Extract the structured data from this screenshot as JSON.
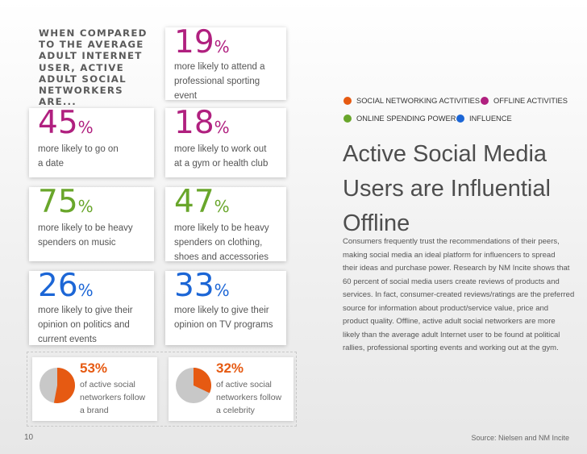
{
  "intro": [
    "WHEN COMPARED",
    "TO THE AVERAGE",
    "ADULT INTERNET",
    "USER, ACTIVE",
    "ADULT SOCIAL",
    "NETWORKERS ARE..."
  ],
  "stats": [
    {
      "value": "19",
      "symbol": "%",
      "color": "#b0207f",
      "lines": [
        "more likely to attend a",
        "professional sporting",
        "event"
      ]
    },
    {
      "value": "45",
      "symbol": "%",
      "color": "#b0207f",
      "lines": [
        "more likely to go on",
        "a date"
      ]
    },
    {
      "value": "18",
      "symbol": "%",
      "color": "#b0207f",
      "lines": [
        "more likely to work out",
        "at a gym or health club"
      ]
    },
    {
      "value": "75",
      "symbol": "%",
      "color": "#69a62b",
      "lines": [
        "more likely to be heavy",
        "spenders on music"
      ]
    },
    {
      "value": "47",
      "symbol": "%",
      "color": "#69a62b",
      "lines": [
        "more likely to be heavy",
        "spenders on clothing,",
        "shoes and accessories"
      ]
    },
    {
      "value": "26",
      "symbol": "%",
      "color": "#1c66d6",
      "lines": [
        "more likely to give their",
        "opinion on politics and",
        "current events"
      ]
    },
    {
      "value": "33",
      "symbol": "%",
      "color": "#1c66d6",
      "lines": [
        "more likely to give their",
        "opinion on TV programs"
      ]
    }
  ],
  "pies": [
    {
      "percent_label": "53%",
      "fraction": 0.53,
      "lines": [
        "of active social",
        "networkers follow",
        "a brand"
      ]
    },
    {
      "percent_label": "32%",
      "fraction": 0.32,
      "lines": [
        "of active social",
        "networkers follow",
        "a celebrity"
      ]
    }
  ],
  "colors": {
    "magenta": "#b0207f",
    "green": "#69a62b",
    "blue": "#1c66d6",
    "orange": "#e65a12",
    "pie_rest": "#c8c8c8"
  },
  "legend": [
    {
      "label": "SOCIAL NETWORKING ACTIVITIES",
      "color": "#e65a12"
    },
    {
      "label": "OFFLINE ACTIVITIES",
      "color": "#b0207f"
    },
    {
      "label": "ONLINE SPENDING POWER",
      "color": "#69a62b"
    },
    {
      "label": "INFLUENCE",
      "color": "#1c66d6"
    }
  ],
  "heading": [
    "Active Social Media",
    "Users are Influential",
    "Offline"
  ],
  "body": [
    "Consumers frequently trust the recommendations of their peers,",
    "making social media an ideal platform for influencers to spread",
    "their ideas and purchase power. Research by NM Incite shows that",
    "60 percent of social media users create reviews of products and",
    "services. In fact, consumer-created reviews/ratings are the preferred",
    "source for information about product/service value, price and",
    "product quality. Offline, active adult social networkers are more",
    "likely than the average adult Internet user to be found at political",
    "rallies, professional sporting events and working out at the gym."
  ],
  "page_number": "10",
  "source": "Source: Nielsen and NM Incite"
}
